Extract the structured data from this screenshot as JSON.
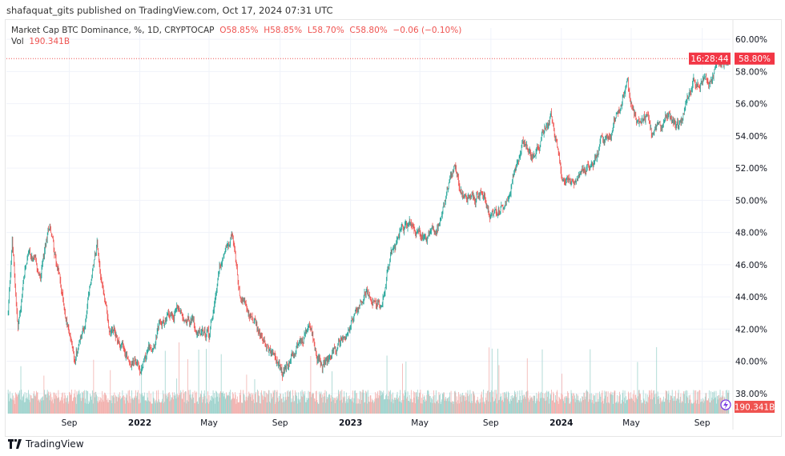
{
  "publisher_line": "shafaquat_gits published on TradingView.com, Oct 17, 2024 07:31 UTC",
  "legend": {
    "symbol": "Market Cap BTC Dominance, %, 1D, CRYPTOCAP",
    "open": "O58.85%",
    "high": "H58.85%",
    "low": "L58.70%",
    "close": "C58.80%",
    "change": "−0.06 (−0.10%)",
    "vol_label": "Vol",
    "vol_value": "190.341B"
  },
  "price_label": {
    "value": "58.80%",
    "countdown": "16:28:44"
  },
  "volume_label": "190.341B",
  "footer": {
    "brand": "TradingView"
  },
  "colors": {
    "up": "#26a69a",
    "down": "#ef5350",
    "vol_up": "#9fd3cd",
    "vol_down": "#f2b1ae"
  },
  "chart_data": {
    "type": "candlestick",
    "title": "Market Cap BTC Dominance, %, 1D, CRYPTOCAP",
    "ylim": [
      36.75,
      60.7
    ],
    "y_ticks": [
      "60.00%",
      "58.00%",
      "56.00%",
      "54.00%",
      "52.00%",
      "50.00%",
      "48.00%",
      "46.00%",
      "44.00%",
      "42.00%",
      "40.00%",
      "38.00%"
    ],
    "x_ticks": [
      {
        "label": "Sep",
        "date": "2021-09-01"
      },
      {
        "label": "2022",
        "date": "2022-01-01"
      },
      {
        "label": "May",
        "date": "2022-05-01"
      },
      {
        "label": "Sep",
        "date": "2022-09-01"
      },
      {
        "label": "2023",
        "date": "2023-01-01"
      },
      {
        "label": "May",
        "date": "2023-05-01"
      },
      {
        "label": "Sep",
        "date": "2023-09-01"
      },
      {
        "label": "2024",
        "date": "2024-01-01"
      },
      {
        "label": "May",
        "date": "2024-05-01"
      },
      {
        "label": "Sep",
        "date": "2024-09-01"
      }
    ],
    "xlim": [
      "2021-05-15",
      "2024-10-20"
    ],
    "grid": true,
    "last_close": 58.8,
    "series": [
      [
        "2021-05-18",
        43
      ],
      [
        "2021-05-25",
        47.5
      ],
      [
        "2021-06-04",
        42
      ],
      [
        "2021-06-22",
        47
      ],
      [
        "2021-07-13",
        45
      ],
      [
        "2021-07-29",
        48.5
      ],
      [
        "2021-08-21",
        44
      ],
      [
        "2021-09-09",
        40
      ],
      [
        "2021-09-27",
        42
      ],
      [
        "2021-10-19",
        47.5
      ],
      [
        "2021-11-09",
        42
      ],
      [
        "2021-12-01",
        41
      ],
      [
        "2022-01-01",
        39.5
      ],
      [
        "2022-02-02",
        42
      ],
      [
        "2022-03-09",
        43.5
      ],
      [
        "2022-04-14",
        42
      ],
      [
        "2022-05-01",
        41.5
      ],
      [
        "2022-05-19",
        46
      ],
      [
        "2022-06-10",
        48.3
      ],
      [
        "2022-06-24",
        44
      ],
      [
        "2022-07-22",
        42
      ],
      [
        "2022-08-27",
        40
      ],
      [
        "2022-09-05",
        39
      ],
      [
        "2022-10-01",
        41
      ],
      [
        "2022-10-22",
        42
      ],
      [
        "2022-11-12",
        39.5
      ],
      [
        "2022-12-10",
        41
      ],
      [
        "2023-01-01",
        42
      ],
      [
        "2023-01-26",
        44.5
      ],
      [
        "2023-02-23",
        43.5
      ],
      [
        "2023-03-16",
        47
      ],
      [
        "2023-04-13",
        48.5
      ],
      [
        "2023-05-11",
        47.5
      ],
      [
        "2023-06-01",
        48.5
      ],
      [
        "2023-06-29",
        52
      ],
      [
        "2023-07-20",
        50
      ],
      [
        "2023-08-17",
        50.5
      ],
      [
        "2023-08-31",
        49
      ],
      [
        "2023-09-28",
        50
      ],
      [
        "2023-10-26",
        54
      ],
      [
        "2023-11-16",
        52.5
      ],
      [
        "2023-12-14",
        55
      ],
      [
        "2024-01-04",
        51
      ],
      [
        "2024-01-21",
        51
      ],
      [
        "2024-03-01",
        53
      ],
      [
        "2024-03-29",
        54.5
      ],
      [
        "2024-04-23",
        57
      ],
      [
        "2024-05-09",
        55
      ],
      [
        "2024-05-30",
        55.5
      ],
      [
        "2024-06-06",
        54
      ],
      [
        "2024-07-05",
        55
      ],
      [
        "2024-07-26",
        54.5
      ],
      [
        "2024-08-16",
        57.5
      ],
      [
        "2024-09-13",
        57.5
      ],
      [
        "2024-10-04",
        58.5
      ],
      [
        "2024-10-17",
        58.8
      ]
    ]
  }
}
